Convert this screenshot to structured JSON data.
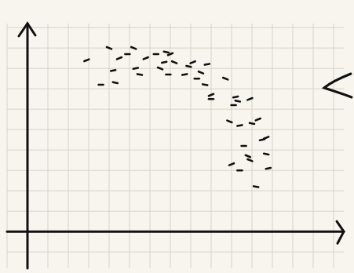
{
  "chart_data": {
    "type": "scatter",
    "x": [
      2.9,
      3.6,
      4.0,
      4.2,
      4.3,
      4.5,
      4.9,
      5.2,
      5.3,
      5.5,
      5.8,
      6.3,
      6.5,
      6.7,
      6.8,
      7.0,
      6.9,
      7.2,
      7.7,
      7.9,
      8.1,
      8.3,
      8.5,
      8.8,
      8.7,
      9.0,
      9.0,
      9.7,
      10.2,
      10.3,
      10.9,
      10.1,
      9.9,
      10.4,
      11.0,
      11.3,
      10.6,
      10.8,
      11.5,
      11.7,
      10.0,
      10.4,
      10.9,
      11.8,
      11.2,
      11.7
    ],
    "values": [
      8.4,
      7.2,
      9.0,
      7.9,
      7.3,
      8.5,
      8.7,
      9.0,
      8.0,
      7.7,
      8.5,
      8.7,
      8.0,
      8.3,
      8.8,
      8.7,
      7.7,
      8.3,
      7.7,
      8.1,
      8.3,
      7.5,
      7.8,
      8.2,
      7.2,
      6.7,
      6.5,
      7.5,
      6.6,
      6.4,
      6.5,
      6.2,
      5.4,
      5.2,
      5.3,
      5.5,
      4.2,
      3.7,
      4.5,
      3.8,
      3.3,
      3.0,
      3.5,
      3.1,
      2.2,
      4.6
    ],
    "color": "#111111",
    "marker": "dash",
    "xlim": [
      -1,
      15.5
    ],
    "ylim": [
      -1.8,
      10.2
    ],
    "xticks": [
      -1,
      0,
      1,
      2,
      3,
      4,
      5,
      6,
      7,
      8,
      9,
      10,
      11,
      12,
      13,
      14,
      15
    ],
    "yticks": [
      -1,
      0,
      1,
      2,
      3,
      4,
      5,
      6,
      7,
      8,
      9,
      10
    ],
    "grid": true,
    "tick_labels": false
  }
}
